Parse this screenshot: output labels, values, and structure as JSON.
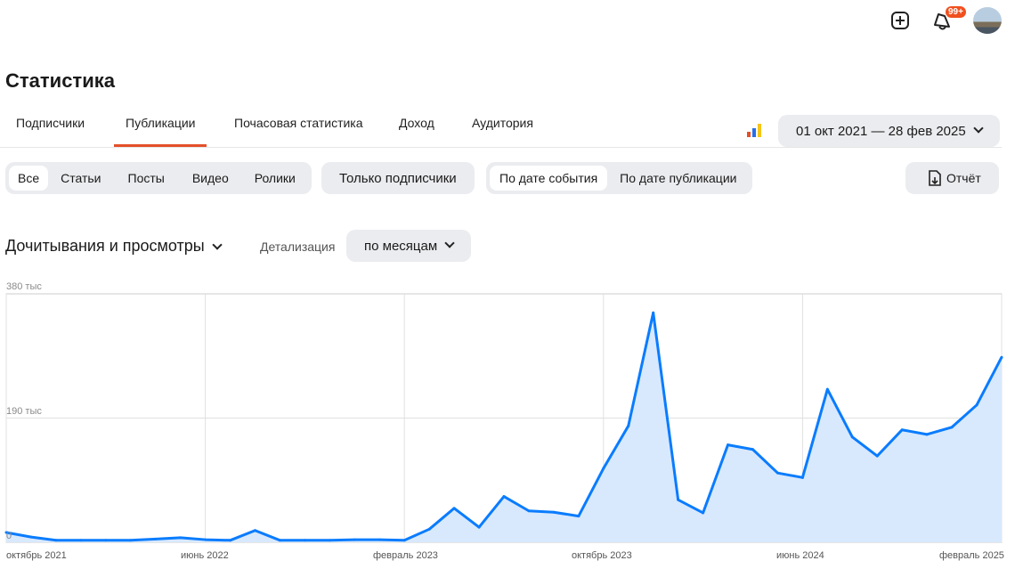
{
  "header": {
    "notifications_badge": "99+",
    "icons": [
      "plus-square-icon",
      "bell-icon",
      "avatar"
    ]
  },
  "page_title": "Статистика",
  "tabs": [
    {
      "label": "Подписчики"
    },
    {
      "label": "Публикации",
      "active": true
    },
    {
      "label": "Почасовая статистика"
    },
    {
      "label": "Доход"
    },
    {
      "label": "Аудитория"
    }
  ],
  "date_range": "01 окт 2021 — 28 фев 2025",
  "filters": {
    "types": [
      "Все",
      "Статьи",
      "Посты",
      "Видео",
      "Ролики"
    ],
    "selected_type": "Все",
    "subscribers_only": "Только подписчики",
    "date_modes": [
      "По дате события",
      "По дате публикации"
    ],
    "selected_date_mode": "По дате события",
    "report": "Отчёт"
  },
  "metric_selector": "Дочитывания и просмотры",
  "detail_label": "Детализация",
  "detail_value": "по месяцам",
  "colors": {
    "accent": "#e4502a",
    "line": "#0a7cff",
    "fill": "#d8e9fd"
  },
  "chart_data": {
    "type": "area",
    "x_start": "октябрь 2021",
    "x_end": "февраль 2025",
    "x_unit": "month",
    "x_tick_labels": [
      "октябрь 2021",
      "июнь 2022",
      "февраль 2023",
      "октябрь 2023",
      "июнь 2024",
      "февраль 2025"
    ],
    "y_tick_labels": [
      "0",
      "190 тыс",
      "380 тыс"
    ],
    "ylim": [
      0,
      380000
    ],
    "grid": true,
    "values": [
      15000,
      8000,
      3000,
      3000,
      3000,
      3000,
      5000,
      7000,
      4000,
      3000,
      18000,
      3000,
      3000,
      3000,
      4000,
      4000,
      3000,
      20000,
      52000,
      23000,
      70000,
      48000,
      46000,
      40000,
      113000,
      178000,
      351000,
      65000,
      45000,
      149000,
      142000,
      106000,
      99000,
      234000,
      161000,
      132000,
      172000,
      165000,
      176000,
      210000,
      283000
    ]
  }
}
